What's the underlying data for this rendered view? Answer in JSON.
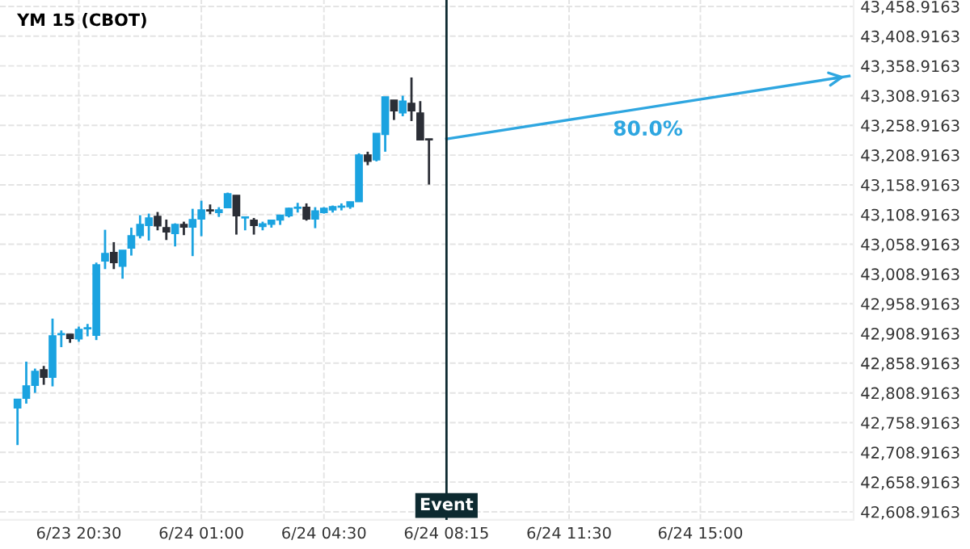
{
  "chart_data": {
    "type": "candlestick",
    "title": "YM 15 (CBOT)",
    "categories": [
      null,
      null,
      null,
      null,
      null,
      null,
      null,
      "6/23 20:30",
      null,
      null,
      null,
      null,
      null,
      null,
      null,
      null,
      null,
      null,
      null,
      null,
      null,
      "6/24 01:00",
      null,
      null,
      null,
      null,
      null,
      null,
      null,
      null,
      null,
      null,
      null,
      null,
      null,
      "6/24 04:30",
      null,
      null,
      null,
      null,
      null,
      null,
      null,
      null,
      null,
      null,
      null,
      null,
      null,
      "6/24 08:15",
      null,
      null,
      null,
      null,
      null,
      null,
      null,
      null,
      null,
      null,
      null,
      null,
      null,
      "6/24 11:30",
      null,
      null,
      null,
      null,
      null,
      null,
      null,
      null,
      null,
      null,
      null,
      null,
      null,
      null,
      "6/24 15:00",
      null,
      null,
      null,
      null,
      null,
      null,
      null,
      null,
      null,
      null,
      null,
      null,
      null,
      null,
      null,
      null,
      null
    ],
    "ohlc": [
      [
        42783.7,
        42798.2,
        42721.2,
        42798.2
      ],
      [
        42800.0,
        42861.5,
        42790.9,
        42820.8
      ],
      [
        42821.7,
        42849.8,
        42809.0,
        42845.2
      ],
      [
        42847.9,
        42854.3,
        42822.6,
        42835.3
      ],
      [
        42835.3,
        42933.9,
        42819.9,
        42905.0
      ],
      [
        42906.8,
        42914.0,
        42885.9,
        42908.6
      ],
      [
        42907.7,
        42907.7,
        42893.2,
        42900.5
      ],
      [
        42899.6,
        42920.4,
        42895.0,
        42915.8
      ],
      [
        42916.7,
        42924.9,
        42904.1,
        42918.6
      ],
      [
        42905.9,
        43028.1,
        42897.8,
        43024.5
      ],
      [
        43030.8,
        43083.3,
        43017.2,
        43043.5
      ],
      [
        43045.3,
        43062.5,
        43017.2,
        43028.1
      ],
      [
        43021.8,
        43048.9,
        43001.0,
        43048.9
      ],
      [
        43052.5,
        43086.9,
        43039.9,
        43073.4
      ],
      [
        43073.4,
        43107.8,
        43068.8,
        43092.4
      ],
      [
        43090.6,
        43110.5,
        43065.2,
        43103.2
      ],
      [
        43105.9,
        43113.2,
        43082.4,
        43089.7
      ],
      [
        43087.0,
        43100.5,
        43066.1,
        43079.7
      ],
      [
        43077.0,
        43094.2,
        43055.3,
        43092.4
      ],
      [
        43092.4,
        43096.9,
        43074.3,
        43087.9
      ],
      [
        43087.9,
        43118.6,
        43039.0,
        43100.5
      ],
      [
        43101.4,
        43132.2,
        43072.5,
        43116.8
      ],
      [
        43116.8,
        43125.9,
        43109.6,
        43115.0
      ],
      [
        43112.3,
        43121.3,
        43105.0,
        43116.8
      ],
      [
        43120.4,
        43145.8,
        43119.5,
        43144.0
      ],
      [
        43141.3,
        43141.3,
        43075.2,
        43106.9
      ],
      [
        43103.2,
        43105.0,
        43082.4,
        43105.0
      ],
      [
        43099.6,
        43103.2,
        43075.2,
        43090.6
      ],
      [
        43088.8,
        43096.9,
        43082.4,
        43093.3
      ],
      [
        43092.4,
        43099.6,
        43086.9,
        43099.6
      ],
      [
        43099.6,
        43107.8,
        43091.5,
        43107.8
      ],
      [
        43106.9,
        43120.4,
        43104.1,
        43119.5
      ],
      [
        43119.5,
        43128.6,
        43112.3,
        43121.3
      ],
      [
        43121.3,
        43127.7,
        43098.7,
        43101.4
      ],
      [
        43101.4,
        43121.3,
        43086.0,
        43115.0
      ],
      [
        43112.3,
        43121.3,
        43110.5,
        43119.5
      ],
      [
        43116.8,
        43124.1,
        43112.3,
        43122.2
      ],
      [
        43121.3,
        43127.7,
        43115.9,
        43123.1
      ],
      [
        43122.2,
        43130.4,
        43118.6,
        43130.4
      ],
      [
        43130.4,
        43211.9,
        43130.4,
        43209.2
      ],
      [
        43209.2,
        43214.6,
        43191.9,
        43198.3
      ],
      [
        43201.0,
        43245.4,
        43198.3,
        43245.4
      ],
      [
        43243.6,
        43306.9,
        43214.6,
        43306.9
      ],
      [
        43301.5,
        43301.5,
        43268.0,
        43283.4
      ],
      [
        43279.8,
        43308.8,
        43274.3,
        43299.7
      ],
      [
        43296.1,
        43339.5,
        43266.2,
        43283.4
      ],
      [
        43279.8,
        43299.7,
        43234.5,
        43234.5
      ],
      [
        43236.3,
        43236.3,
        43159.4,
        43234.5
      ],
      null,
      null,
      null,
      null,
      null,
      null,
      null,
      null,
      null,
      null,
      null,
      null,
      null,
      null,
      null,
      null,
      null,
      null,
      null,
      null,
      null,
      null,
      null,
      null,
      null,
      null,
      null,
      null,
      null,
      null,
      null,
      null,
      null,
      null,
      null,
      null,
      null,
      null,
      null,
      null,
      null,
      null,
      null,
      null,
      null,
      null,
      null,
      null
    ],
    "colors": [
      "#1ba3e0",
      "#1ba3e0",
      "#1ba3e0",
      "#2b2e36",
      "#1ba3e0",
      "#1ba3e0",
      "#2b2e36",
      "#1ba3e0",
      "#1ba3e0",
      "#1ba3e0",
      "#1ba3e0",
      "#2b2e36",
      "#1ba3e0",
      "#1ba3e0",
      "#1ba3e0",
      "#1ba3e0",
      "#2b2e36",
      "#2b2e36",
      "#1ba3e0",
      "#2b2e36",
      "#1ba3e0",
      "#1ba3e0",
      "#2b2e36",
      "#1ba3e0",
      "#1ba3e0",
      "#2b2e36",
      "#1ba3e0",
      "#2b2e36",
      "#1ba3e0",
      "#1ba3e0",
      "#1ba3e0",
      "#1ba3e0",
      "#1ba3e0",
      "#2b2e36",
      "#1ba3e0",
      "#1ba3e0",
      "#1ba3e0",
      "#1ba3e0",
      "#1ba3e0",
      "#1ba3e0",
      "#2b2e36",
      "#1ba3e0",
      "#1ba3e0",
      "#2b2e36",
      "#1ba3e0",
      "#2b2e36",
      "#2b2e36",
      "#2b2e36",
      null,
      null,
      null,
      null,
      null,
      null,
      null,
      null,
      null,
      null,
      null,
      null,
      null,
      null,
      null,
      null,
      null,
      null,
      null,
      null,
      null,
      null,
      null,
      null,
      null,
      null,
      null,
      null,
      null,
      null,
      null,
      null,
      null,
      null,
      null,
      null,
      null,
      null,
      null,
      null,
      null,
      null,
      null,
      null,
      null,
      null,
      null,
      null
    ],
    "series": [
      {
        "type": "line",
        "color": "#2ea6e0",
        "values": [
          null,
          null,
          null,
          null,
          null,
          null,
          null,
          null,
          null,
          null,
          null,
          null,
          null,
          null,
          null,
          null,
          null,
          null,
          null,
          null,
          null,
          null,
          null,
          null,
          null,
          null,
          null,
          null,
          null,
          null,
          null,
          null,
          null,
          null,
          null,
          null,
          null,
          null,
          null,
          null,
          null,
          null,
          null,
          null,
          null,
          null,
          null,
          null,
          null,
          43236,
          null,
          null,
          null,
          null,
          null,
          null,
          null,
          null,
          null,
          null,
          null,
          null,
          null,
          null,
          null,
          null,
          null,
          null,
          null,
          null,
          null,
          null,
          null,
          null,
          null,
          null,
          null,
          null,
          null,
          null,
          null,
          null,
          null,
          null,
          null,
          null,
          null,
          null,
          null,
          null,
          null,
          null,
          null,
          null,
          null,
          43342
        ]
      }
    ],
    "annotations": [
      "80.0%"
    ],
    "ref_lines": [
      {
        "axis": "x",
        "value": "6/24 08:15",
        "label": "Event",
        "color": "#0d2a30"
      }
    ],
    "ylim": [
      42595.3,
      43469.8
    ],
    "yticks": [
      {
        "value": 42608.9163,
        "label": "42,608.9163"
      },
      {
        "value": 42658.9163,
        "label": "42,658.9163"
      },
      {
        "value": 42708.9163,
        "label": "42,708.9163"
      },
      {
        "value": 42758.9163,
        "label": "42,758.9163"
      },
      {
        "value": 42808.9163,
        "label": "42,808.9163"
      },
      {
        "value": 42858.9163,
        "label": "42,858.9163"
      },
      {
        "value": 42908.9163,
        "label": "42,908.9163"
      },
      {
        "value": 42958.9163,
        "label": "42,958.9163"
      },
      {
        "value": 43008.9163,
        "label": "43,008.9163"
      },
      {
        "value": 43058.9163,
        "label": "43,058.9163"
      },
      {
        "value": 43108.9163,
        "label": "43,108.9163"
      },
      {
        "value": 43158.9163,
        "label": "43,158.9163"
      },
      {
        "value": 43208.9163,
        "label": "43,208.9163"
      },
      {
        "value": 43258.9163,
        "label": "43,258.9163"
      },
      {
        "value": 43308.9163,
        "label": "43,308.9163"
      },
      {
        "value": 43358.9163,
        "label": "43,358.9163"
      },
      {
        "value": 43408.9163,
        "label": "43,408.9163"
      },
      {
        "value": 43458.9163,
        "label": "43,458.9163"
      }
    ],
    "grid": true
  }
}
